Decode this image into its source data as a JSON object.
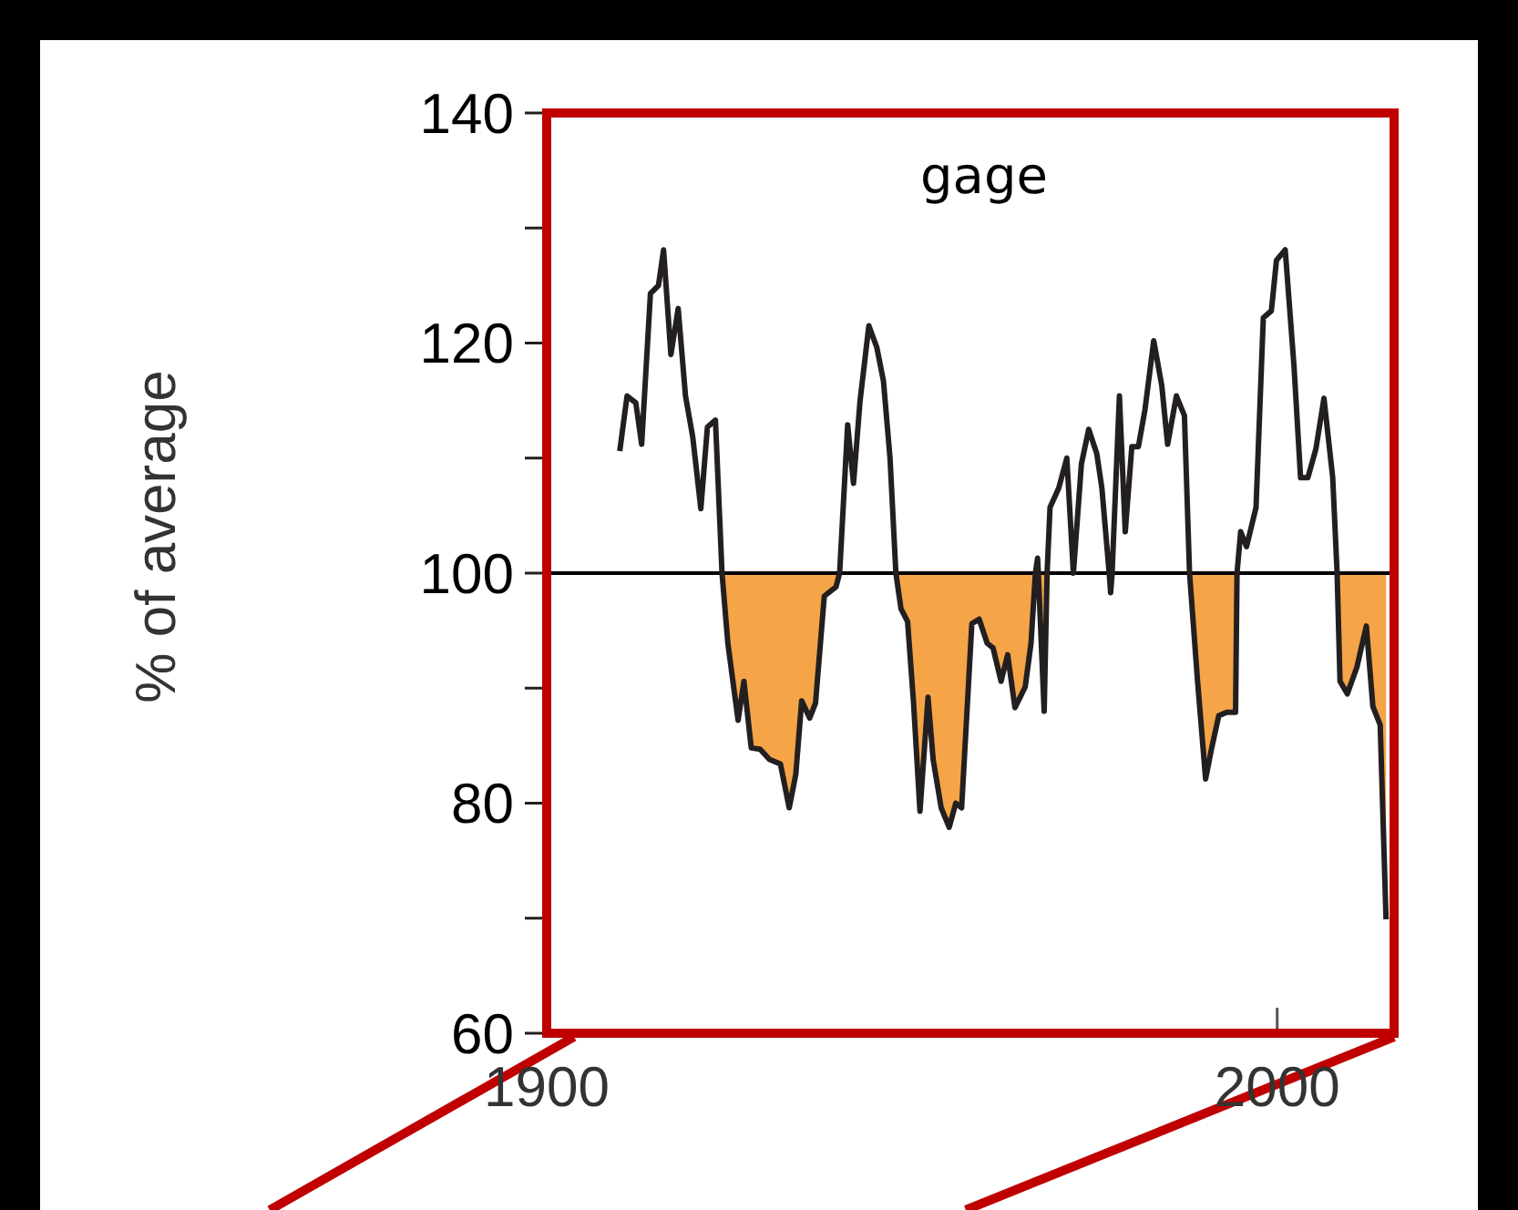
{
  "chart_data": {
    "type": "line",
    "title": "gage",
    "ylabel": "% of average",
    "xlim": [
      1900,
      2016
    ],
    "xticks": [
      1900,
      2000
    ],
    "ylim": [
      60,
      140
    ],
    "yticks": [
      60,
      {
        "value": 70,
        "label": null
      },
      80,
      {
        "value": 90,
        "label": null
      },
      100,
      {
        "value": 110,
        "label": null
      },
      120,
      {
        "value": 130,
        "label": null
      },
      140
    ],
    "ref_lines": [
      {
        "axis": "y",
        "value": 100,
        "color": "#000000"
      }
    ],
    "grid": false,
    "x": [
      1910,
      1911,
      1912.2,
      1913,
      1914.2,
      1915.3,
      1916,
      1917,
      1918,
      1919,
      1920,
      1921.1,
      1922,
      1923.1,
      1924,
      1924.8,
      1926.2,
      1927,
      1928,
      1929.2,
      1930.5,
      1932,
      1933.2,
      1934.1,
      1934.9,
      1936,
      1936.8,
      1938,
      1939.6,
      1940.1,
      1941.2,
      1942,
      1942.9,
      1944.1,
      1945.2,
      1946.1,
      1947,
      1947.8,
      1948.5,
      1949.4,
      1950.2,
      1951.1,
      1952.2,
      1952.9,
      1954,
      1955.1,
      1956,
      1956.8,
      1958.2,
      1959.2,
      1960.3,
      1961.1,
      1962.2,
      1963.1,
      1964.1,
      1965.5,
      1966.3,
      1966.9,
      1967.2,
      1967.3,
      1968.1,
      1968.5,
      1968.9,
      1970.1,
      1971.2,
      1972.1,
      1973.2,
      1974.2,
      1975.3,
      1976,
      1977,
      1977.2,
      1977.4,
      1978.4,
      1979.2,
      1980.1,
      1981,
      1981.9,
      1983.1,
      1984.2,
      1985,
      1986.2,
      1987.3,
      1988,
      1989.1,
      1990.2,
      1991,
      1992,
      1993.1,
      1994.3,
      1994.5,
      1995,
      1995.8,
      1997.1,
      1998.1,
      1999.2,
      1999.9,
      2001.1,
      2002.3,
      2003.2,
      2004.2,
      2005.3,
      2006.4,
      2007.6,
      2008.2,
      2008.6,
      2009.6,
      2010.9,
      2012.2,
      2013.1,
      2014.1,
      2014.9
    ],
    "series": [
      {
        "color": "#231f20",
        "values": [
          110.6,
          115.4,
          114.8,
          111.2,
          124.3,
          125,
          128.1,
          119,
          123,
          115.4,
          111.8,
          105.6,
          112.7,
          113.3,
          100,
          93.9,
          87.2,
          90.6,
          84.8,
          84.7,
          83.8,
          83.4,
          79.6,
          82.5,
          88.9,
          87.4,
          88.7,
          98,
          98.8,
          100,
          112.9,
          107.8,
          115,
          121.5,
          119.6,
          116.7,
          110,
          100,
          96.9,
          95.8,
          88.9,
          79.3,
          89.2,
          83.8,
          79.6,
          77.9,
          80,
          79.6,
          95.6,
          96,
          93.9,
          93.5,
          90.6,
          92.9,
          88.3,
          90.1,
          93.9,
          100,
          101.3,
          100,
          88,
          100,
          105.7,
          107.4,
          110,
          100,
          109.5,
          112.5,
          110.4,
          107.4,
          100,
          98.3,
          100,
          115.4,
          103.6,
          111,
          111,
          114.2,
          120.2,
          116.3,
          111.2,
          115.4,
          113.7,
          100,
          90.6,
          82.1,
          84.7,
          87.6,
          87.9,
          87.9,
          100,
          103.6,
          102.3,
          105.7,
          122.2,
          122.8,
          127.2,
          128.1,
          118,
          108.3,
          108.3,
          110.8,
          115.2,
          108.3,
          100,
          90.6,
          89.5,
          91.8,
          95.4,
          88.4,
          86.8,
          69.9
        ]
      },
      {
        "type": "area",
        "color": "#f5a547",
        "x": [
          1924,
          1924.8,
          1926.2,
          1927,
          1928,
          1929.2,
          1930.5,
          1932,
          1933.2,
          1934.1,
          1934.9,
          1936,
          1936.8,
          1938,
          1939.6,
          1940.1,
          1941.2,
          1942,
          1942.9,
          1944.1,
          1945.2,
          1946.1,
          1947,
          1947.8,
          1948.5,
          1949.4,
          1950.2,
          1951.1,
          1952.2,
          1952.9,
          1954,
          1955.1,
          1956,
          1956.8,
          1958.2,
          1959.2,
          1960.3,
          1961.1,
          1962.2,
          1963.1,
          1964.1,
          1965.5,
          1966.3,
          1966.9,
          1967.2,
          1967.3,
          1968.1,
          1968.5,
          1968.9,
          1970.1,
          1971.2,
          1972.1,
          1973.2,
          1974.2,
          1975.3,
          1976,
          1977,
          1977.2,
          1977.4,
          1978.4,
          1979.2,
          1980.1,
          1981,
          1981.9,
          1983.1,
          1984.2,
          1985,
          1986.2,
          1987.3,
          1988,
          1989.1,
          1990.2,
          1991,
          1992,
          1993.1,
          1994.3,
          1994.5,
          1995,
          1995.8,
          1997.1,
          1998.1,
          1999.2,
          1999.9,
          2001.1,
          2002.3,
          2003.2,
          2004.2,
          2005.3,
          2006.4,
          2007.6,
          2008.2,
          2008.6,
          2009.6,
          2010.9,
          2012.2,
          2013.1,
          2014.1,
          2014.9,
          2014.9
        ],
        "values": [
          100,
          93.9,
          87.2,
          90.6,
          84.8,
          84.7,
          83.8,
          83.4,
          79.6,
          82.5,
          88.9,
          87.4,
          88.7,
          98,
          98.8,
          100,
          null,
          null,
          null,
          null,
          null,
          null,
          null,
          100,
          96.9,
          95.8,
          88.9,
          79.3,
          89.2,
          83.8,
          79.6,
          77.9,
          80,
          79.6,
          95.6,
          96,
          93.9,
          93.5,
          90.6,
          92.9,
          88.3,
          90.1,
          93.9,
          100,
          null,
          100,
          88,
          100,
          null,
          null,
          null,
          null,
          null,
          null,
          null,
          null,
          100,
          98.3,
          100,
          null,
          null,
          null,
          null,
          null,
          null,
          null,
          null,
          null,
          null,
          100,
          90.6,
          82.1,
          84.7,
          87.6,
          87.9,
          87.9,
          100,
          null,
          null,
          null,
          null,
          null,
          null,
          null,
          null,
          null,
          null,
          null,
          null,
          null,
          100,
          90.6,
          89.5,
          91.8,
          95.4,
          88.4,
          86.8,
          69.9,
          100
        ]
      }
    ]
  }
}
